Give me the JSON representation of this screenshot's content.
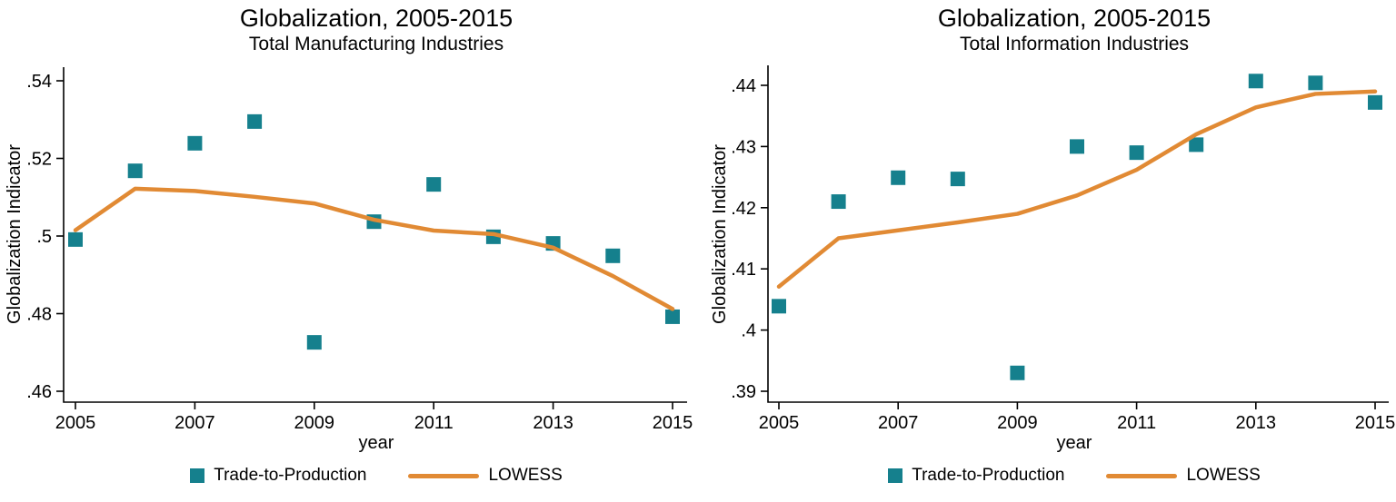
{
  "figure": {
    "background": "#ffffff",
    "text_color": "#000000",
    "axis_color": "#000000"
  },
  "chart_data": [
    {
      "type": "scatter",
      "title": "Globalization, 2005-2015",
      "subtitle": "Total Manufacturing Industries",
      "xlabel": "year",
      "ylabel": "Globalization Indicator",
      "grid": false,
      "legend_position": "bottom-center",
      "x": [
        2005,
        2006,
        2007,
        2008,
        2009,
        2010,
        2011,
        2012,
        2013,
        2014,
        2015
      ],
      "xticks": [
        2005,
        2007,
        2009,
        2011,
        2013,
        2015
      ],
      "yticks": [
        {
          "v": 0.46,
          "label": ".46"
        },
        {
          "v": 0.48,
          "label": ".48"
        },
        {
          "v": 0.5,
          "label": ".5"
        },
        {
          "v": 0.52,
          "label": ".52"
        },
        {
          "v": 0.54,
          "label": ".54"
        }
      ],
      "ylim": [
        0.455,
        0.545
      ],
      "series": [
        {
          "name": "Trade-to-Production",
          "kind": "scatter",
          "marker": "square",
          "color": "#15808d",
          "values": [
            0.4991,
            0.5168,
            0.5239,
            0.5295,
            0.4726,
            0.5037,
            0.5133,
            0.4998,
            0.4981,
            0.4949,
            0.4792
          ]
        },
        {
          "name": "LOWESS",
          "kind": "line",
          "color": "#e18a34",
          "values": [
            0.5015,
            0.5122,
            0.5116,
            0.5101,
            0.5084,
            0.5042,
            0.5014,
            0.5005,
            0.497,
            0.4897,
            0.4812
          ]
        }
      ]
    },
    {
      "type": "scatter",
      "title": "Globalization, 2005-2015",
      "subtitle": "Total Information Industries",
      "xlabel": "year",
      "ylabel": "Globalization Indicator",
      "grid": false,
      "legend_position": "bottom-center",
      "x": [
        2005,
        2006,
        2007,
        2008,
        2009,
        2010,
        2011,
        2012,
        2013,
        2014,
        2015
      ],
      "xticks": [
        2005,
        2007,
        2009,
        2011,
        2013,
        2015
      ],
      "yticks": [
        {
          "v": 0.39,
          "label": ".39"
        },
        {
          "v": 0.4,
          "label": ".4"
        },
        {
          "v": 0.41,
          "label": ".41"
        },
        {
          "v": 0.42,
          "label": ".42"
        },
        {
          "v": 0.43,
          "label": ".43"
        },
        {
          "v": 0.44,
          "label": ".44"
        }
      ],
      "ylim": [
        0.388,
        0.443
      ],
      "series": [
        {
          "name": "Trade-to-Production",
          "kind": "scatter",
          "marker": "square",
          "color": "#15808d",
          "values": [
            0.4039,
            0.421,
            0.4249,
            0.4247,
            0.393,
            0.43,
            0.429,
            0.4303,
            0.4407,
            0.4404,
            0.4372
          ]
        },
        {
          "name": "LOWESS",
          "kind": "line",
          "color": "#e18a34",
          "values": [
            0.4071,
            0.415,
            0.4163,
            0.4176,
            0.419,
            0.422,
            0.4262,
            0.432,
            0.4364,
            0.4386,
            0.439
          ]
        }
      ]
    }
  ]
}
